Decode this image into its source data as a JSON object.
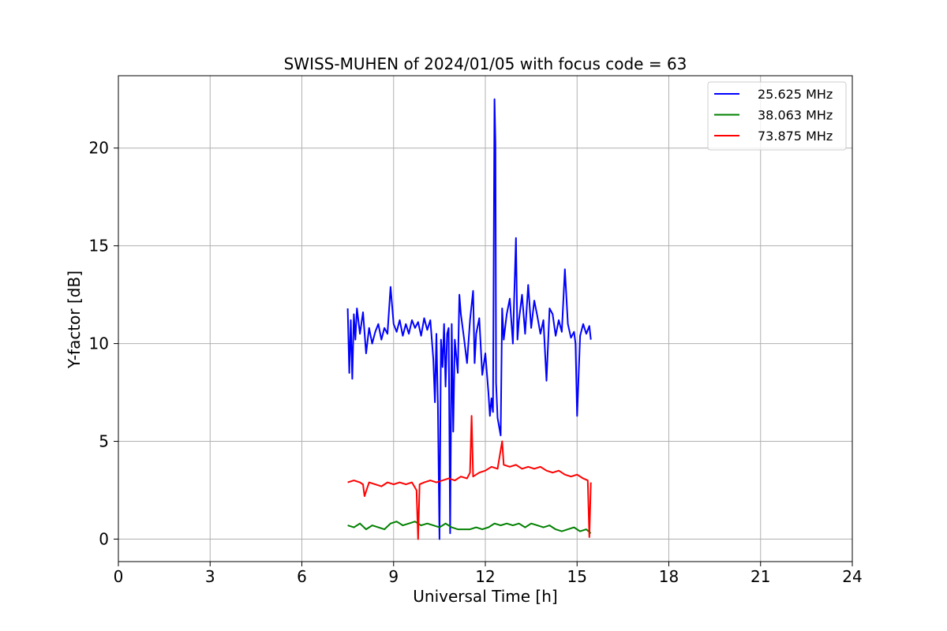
{
  "chart_data": {
    "type": "line",
    "title": "SWISS-MUHEN of 2024/01/05 with focus code = 63",
    "xlabel": "Universal Time [h]",
    "ylabel": "Y-factor [dB]",
    "xlim": [
      0,
      24
    ],
    "ylim": [
      -1.15,
      23.7
    ],
    "xticks": [
      0,
      3,
      6,
      9,
      12,
      15,
      18,
      21,
      24
    ],
    "yticks": [
      0,
      5,
      10,
      15,
      20
    ],
    "grid": true,
    "legend_position": "top-right",
    "series": [
      {
        "name": "25.625 MHz",
        "color": "#0000ff",
        "x": [
          7.5,
          7.55,
          7.6,
          7.65,
          7.7,
          7.75,
          7.8,
          7.9,
          8.0,
          8.1,
          8.2,
          8.3,
          8.4,
          8.5,
          8.6,
          8.7,
          8.8,
          8.9,
          9.0,
          9.1,
          9.2,
          9.3,
          9.4,
          9.5,
          9.6,
          9.7,
          9.8,
          9.9,
          10.0,
          10.1,
          10.2,
          10.3,
          10.35,
          10.4,
          10.45,
          10.5,
          10.55,
          10.6,
          10.65,
          10.7,
          10.75,
          10.8,
          10.85,
          10.9,
          10.95,
          11.0,
          11.1,
          11.15,
          11.2,
          11.3,
          11.4,
          11.5,
          11.6,
          11.65,
          11.7,
          11.8,
          11.9,
          12.0,
          12.1,
          12.15,
          12.2,
          12.25,
          12.3,
          12.33,
          12.35,
          12.4,
          12.5,
          12.55,
          12.6,
          12.7,
          12.8,
          12.9,
          13.0,
          13.05,
          13.1,
          13.2,
          13.3,
          13.4,
          13.5,
          13.6,
          13.7,
          13.8,
          13.9,
          14.0,
          14.1,
          14.2,
          14.3,
          14.4,
          14.5,
          14.6,
          14.7,
          14.8,
          14.9,
          14.95,
          15.0,
          15.1,
          15.2,
          15.3,
          15.4,
          15.45
        ],
        "y": [
          11.8,
          8.5,
          11.2,
          8.2,
          11.5,
          10.2,
          11.8,
          10.5,
          11.6,
          9.5,
          10.8,
          10.0,
          10.6,
          11.0,
          10.2,
          10.8,
          10.5,
          12.9,
          11.0,
          10.6,
          11.2,
          10.4,
          11.0,
          10.5,
          11.2,
          10.8,
          11.1,
          10.4,
          11.3,
          10.7,
          11.2,
          9.2,
          7.0,
          10.5,
          6.8,
          0.0,
          10.2,
          8.8,
          11.0,
          7.8,
          10.5,
          10.8,
          0.3,
          11.0,
          5.5,
          10.2,
          8.5,
          12.5,
          11.5,
          10.3,
          9.0,
          11.2,
          12.7,
          9.0,
          10.5,
          11.3,
          8.4,
          9.5,
          7.5,
          6.3,
          7.2,
          6.5,
          22.5,
          20.2,
          8.0,
          6.2,
          5.3,
          11.8,
          10.2,
          11.5,
          12.3,
          10.0,
          15.4,
          10.2,
          11.2,
          12.5,
          10.5,
          13.0,
          10.8,
          12.2,
          11.4,
          10.5,
          11.2,
          8.1,
          11.8,
          11.5,
          10.4,
          11.2,
          10.6,
          13.8,
          11.0,
          10.3,
          10.6,
          10.0,
          6.3,
          10.4,
          11.0,
          10.5,
          10.9,
          10.2
        ]
      },
      {
        "name": "38.063 MHz",
        "color": "#008000",
        "x": [
          7.5,
          7.7,
          7.9,
          8.1,
          8.3,
          8.5,
          8.7,
          8.9,
          9.1,
          9.3,
          9.5,
          9.7,
          9.9,
          10.1,
          10.3,
          10.5,
          10.7,
          10.9,
          11.1,
          11.3,
          11.5,
          11.7,
          11.9,
          12.1,
          12.3,
          12.5,
          12.7,
          12.9,
          13.1,
          13.3,
          13.5,
          13.7,
          13.9,
          14.1,
          14.3,
          14.5,
          14.7,
          14.9,
          15.1,
          15.3,
          15.45
        ],
        "y": [
          0.7,
          0.6,
          0.8,
          0.5,
          0.7,
          0.6,
          0.5,
          0.8,
          0.9,
          0.7,
          0.8,
          0.9,
          0.7,
          0.8,
          0.7,
          0.6,
          0.8,
          0.6,
          0.5,
          0.5,
          0.5,
          0.6,
          0.5,
          0.6,
          0.8,
          0.7,
          0.8,
          0.7,
          0.8,
          0.6,
          0.8,
          0.7,
          0.6,
          0.7,
          0.5,
          0.4,
          0.5,
          0.6,
          0.4,
          0.5,
          0.3
        ]
      },
      {
        "name": "73.875 MHz",
        "color": "#ff0000",
        "x": [
          7.5,
          7.7,
          7.9,
          8.0,
          8.05,
          8.2,
          8.4,
          8.6,
          8.8,
          9.0,
          9.2,
          9.4,
          9.6,
          9.75,
          9.8,
          9.85,
          10.0,
          10.2,
          10.4,
          10.6,
          10.8,
          11.0,
          11.2,
          11.4,
          11.5,
          11.55,
          11.6,
          11.8,
          12.0,
          12.2,
          12.4,
          12.55,
          12.6,
          12.8,
          13.0,
          13.2,
          13.4,
          13.6,
          13.8,
          14.0,
          14.2,
          14.4,
          14.6,
          14.8,
          15.0,
          15.2,
          15.35,
          15.4,
          15.45
        ],
        "y": [
          2.9,
          3.0,
          2.9,
          2.8,
          2.2,
          2.9,
          2.8,
          2.7,
          2.9,
          2.8,
          2.9,
          2.8,
          2.9,
          2.5,
          0.0,
          2.8,
          2.9,
          3.0,
          2.9,
          3.0,
          3.1,
          3.0,
          3.2,
          3.1,
          3.4,
          6.3,
          3.2,
          3.4,
          3.5,
          3.7,
          3.6,
          5.0,
          3.8,
          3.7,
          3.8,
          3.6,
          3.7,
          3.6,
          3.7,
          3.5,
          3.4,
          3.5,
          3.3,
          3.2,
          3.3,
          3.1,
          3.0,
          0.1,
          2.9
        ]
      }
    ]
  }
}
